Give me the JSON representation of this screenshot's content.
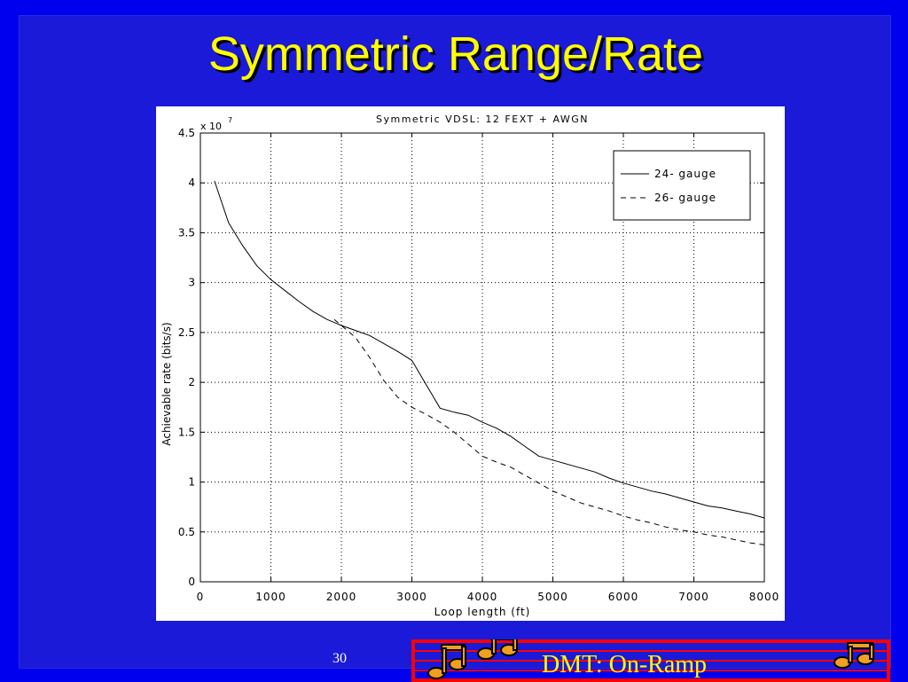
{
  "slide": {
    "title": "Symmetric Range/Rate",
    "page_number": "30",
    "footer_text": "DMT: On-Ramp",
    "background_color": "#0000ee",
    "title_color": "#ffff00",
    "footer_border_color": "#ff0000",
    "footer_icon": "music-notes-icon"
  },
  "chart_data": {
    "type": "line",
    "title": "Symmetric VDSL: 12 FEXT + AWGN",
    "xlabel": "Loop length (ft)",
    "ylabel": "Achievable rate (bits/s)",
    "y_multiplier_label": "x 10",
    "y_multiplier_exponent": "7",
    "xlim": [
      0,
      8000
    ],
    "ylim": [
      0,
      4.5
    ],
    "xticks": [
      0,
      1000,
      2000,
      3000,
      4000,
      5000,
      6000,
      7000,
      8000
    ],
    "xtick_labels": [
      "0",
      "1000",
      "2000",
      "3000",
      "4000",
      "5000",
      "6000",
      "7000",
      "8000"
    ],
    "yticks": [
      0,
      0.5,
      1,
      1.5,
      2,
      2.5,
      3,
      3.5,
      4,
      4.5
    ],
    "ytick_labels": [
      "0",
      "0.5",
      "1",
      "1.5",
      "2",
      "2.5",
      "3",
      "3.5",
      "4",
      "4.5"
    ],
    "grid": true,
    "legend_position": "top-right",
    "series": [
      {
        "name": "24- gauge",
        "line_style": "solid",
        "x": [
          200,
          400,
          600,
          800,
          1000,
          1200,
          1400,
          1600,
          1800,
          2000,
          2200,
          2400,
          2600,
          2800,
          3000,
          3200,
          3400,
          3600,
          3800,
          4000,
          4200,
          4400,
          4600,
          4800,
          5000,
          5200,
          5400,
          5600,
          5800,
          6000,
          6200,
          6400,
          6600,
          6800,
          7000,
          7200,
          7400,
          7600,
          7800,
          8000
        ],
        "y": [
          4.02,
          3.6,
          3.37,
          3.17,
          3.03,
          2.92,
          2.81,
          2.71,
          2.63,
          2.57,
          2.52,
          2.47,
          2.39,
          2.31,
          2.22,
          1.98,
          1.74,
          1.7,
          1.67,
          1.6,
          1.54,
          1.46,
          1.36,
          1.26,
          1.22,
          1.18,
          1.14,
          1.1,
          1.04,
          0.99,
          0.95,
          0.91,
          0.88,
          0.84,
          0.8,
          0.76,
          0.74,
          0.71,
          0.68,
          0.64
        ]
      },
      {
        "name": "26- gauge",
        "line_style": "dashed",
        "x": [
          1900,
          2000,
          2200,
          2400,
          2600,
          2800,
          3000,
          3200,
          3400,
          3600,
          3800,
          4000,
          4200,
          4400,
          4600,
          4800,
          5000,
          5200,
          5400,
          5600,
          5800,
          6000,
          6200,
          6400,
          6600,
          6800,
          7000,
          7200,
          7400,
          7600,
          7800,
          8000
        ],
        "y": [
          2.63,
          2.57,
          2.45,
          2.25,
          2.02,
          1.85,
          1.75,
          1.68,
          1.6,
          1.5,
          1.38,
          1.26,
          1.2,
          1.15,
          1.07,
          0.99,
          0.91,
          0.85,
          0.79,
          0.75,
          0.71,
          0.66,
          0.62,
          0.59,
          0.55,
          0.52,
          0.5,
          0.47,
          0.45,
          0.42,
          0.39,
          0.37
        ]
      }
    ]
  }
}
